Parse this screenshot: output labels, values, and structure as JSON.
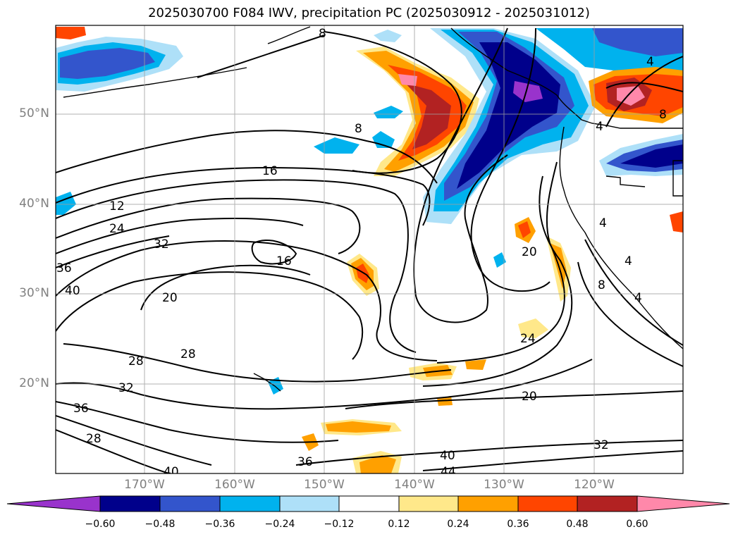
{
  "title": "2025030700 F084 IWV, precipitation PC (2025030912 - 2025031012)",
  "map": {
    "lat_labels": [
      "50°N",
      "40°N",
      "30°N",
      "20°N"
    ],
    "lon_labels": [
      "170°W",
      "160°W",
      "150°W",
      "140°W",
      "130°W",
      "120°W"
    ],
    "contour_labels": [
      "8",
      "8",
      "16",
      "12",
      "24",
      "32",
      "36",
      "40",
      "16",
      "20",
      "28",
      "28",
      "32",
      "36",
      "28",
      "40",
      "36",
      "20",
      "20",
      "24",
      "40",
      "44",
      "32",
      "8",
      "4",
      "4",
      "8",
      "4",
      "4",
      "4"
    ]
  },
  "colorbar": {
    "colors": [
      "#9933cc",
      "#00008b",
      "#3355cc",
      "#00b2ee",
      "#aee0f8",
      "#ffffff",
      "#ffe88a",
      "#ffa000",
      "#ff4500",
      "#b22222",
      "#ff88aa"
    ],
    "ticks": [
      "−0.60",
      "−0.48",
      "−0.36",
      "−0.24",
      "−0.12",
      "0.12",
      "0.24",
      "0.36",
      "0.48",
      "0.60"
    ]
  }
}
